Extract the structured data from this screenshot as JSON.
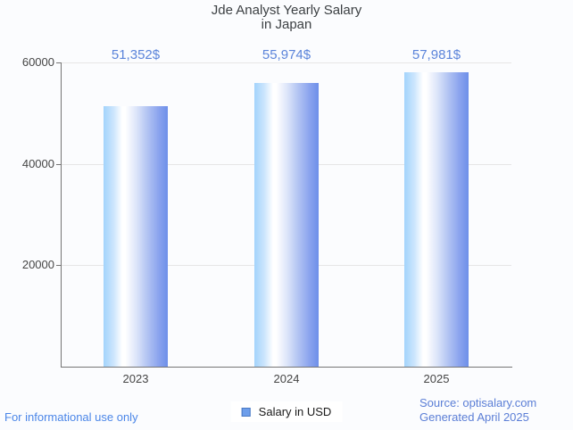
{
  "chart_data": {
    "type": "bar",
    "title_lines": [
      "Jde Analyst Yearly Salary",
      "in Japan"
    ],
    "categories": [
      "2023",
      "2024",
      "2025"
    ],
    "values": [
      51352,
      55974,
      57981
    ],
    "value_labels": [
      "51,352$",
      "55,974$",
      "57,981$"
    ],
    "xlabel": "",
    "ylabel": "",
    "ylim": [
      0,
      60000
    ],
    "y_ticks": [
      20000,
      40000,
      60000
    ],
    "grid": true,
    "legend_position": "bottom",
    "legend_entries": [
      "Salary in USD"
    ]
  },
  "footer": {
    "disclaimer": "For informational use only",
    "source": "Source: optisalary.com",
    "generated": "Generated April 2025"
  },
  "colors": {
    "background": "#fbfcfe",
    "title": "#3c4043",
    "value_label": "#5b84da",
    "bar_gradient_left": "#a2d3fc",
    "bar_gradient_highlight": "#ffffff",
    "bar_gradient_right": "#6d8fe9",
    "axis_line": "#757575",
    "grid_line": "#e6e6e6",
    "tick_text": "#454545",
    "legend_swatch_fill": "#6d9eeb",
    "legend_swatch_border": "#4a79c4",
    "legend_text": "#1a1a1a",
    "disclaimer_text": "#4b86e8",
    "source_text": "#5b7ed6"
  }
}
